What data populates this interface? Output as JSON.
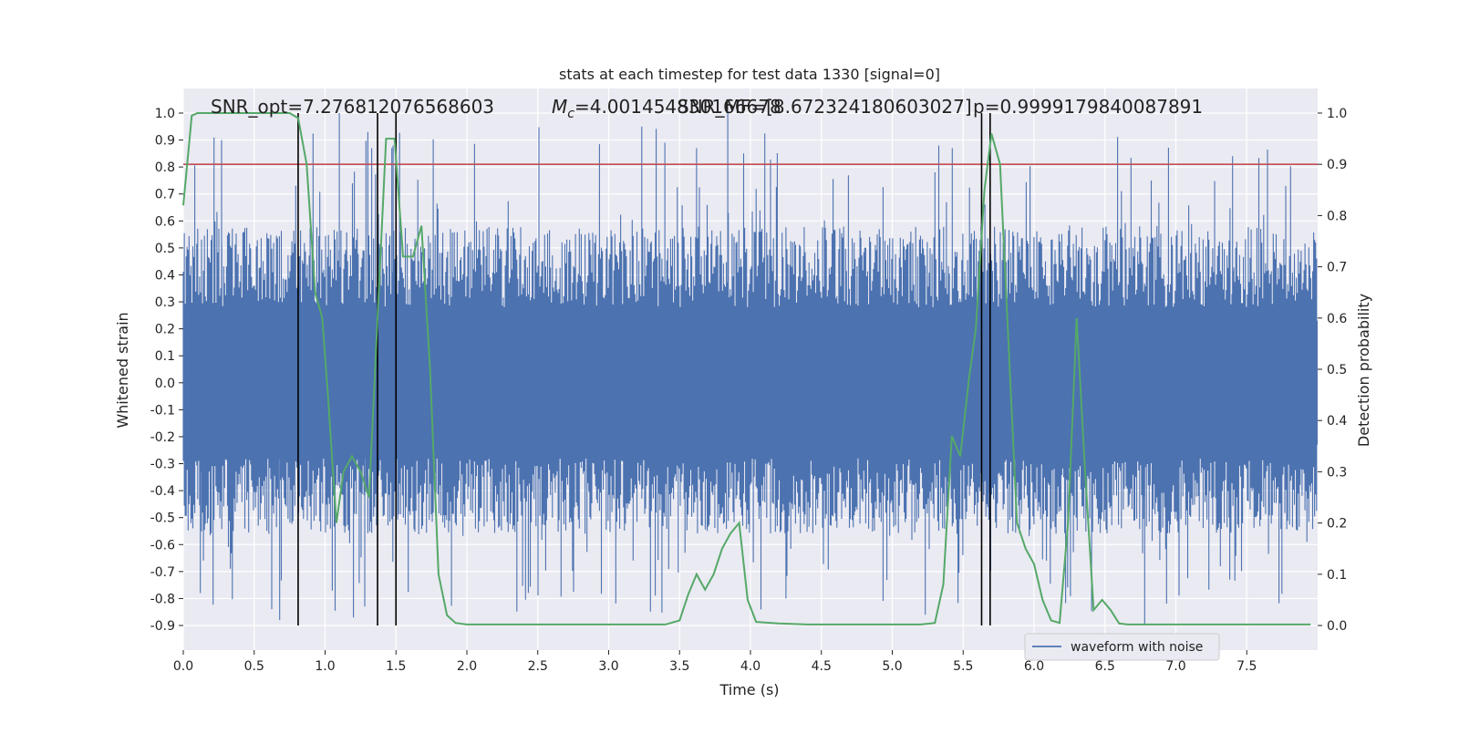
{
  "chart_data": {
    "type": "line",
    "title": "stats at each timestep for test data 1330 [signal=0]",
    "xlabel": "Time (s)",
    "ylabel_left": "Whitened strain",
    "ylabel_right": "Detection probability",
    "xlim": [
      0,
      8.0
    ],
    "ylim_left": [
      -1.0,
      1.05
    ],
    "ylim_right": [
      -0.05,
      1.05
    ],
    "x_ticks": [
      "0.0",
      "0.5",
      "1.0",
      "1.5",
      "2.0",
      "2.5",
      "3.0",
      "3.5",
      "4.0",
      "4.5",
      "5.0",
      "5.5",
      "6.0",
      "6.5",
      "7.0",
      "7.5"
    ],
    "y_left_ticks": [
      "1.0",
      "0.9",
      "0.8",
      "0.7",
      "0.6",
      "0.5",
      "0.4",
      "0.3",
      "0.2",
      "0.1",
      "0.0",
      "-0.1",
      "-0.2",
      "-0.3",
      "-0.4",
      "-0.5",
      "-0.6",
      "-0.7",
      "-0.8",
      "-0.9"
    ],
    "y_right_ticks": [
      "1.0",
      "0.9",
      "0.8",
      "0.7",
      "0.6",
      "0.5",
      "0.4",
      "0.3",
      "0.2",
      "0.1",
      "0.0"
    ],
    "grid": true,
    "legend": {
      "placement": "lower-right",
      "entries": [
        "waveform with noise"
      ]
    },
    "annotations": {
      "snr_opt": "SNR_opt=7.276812076568603",
      "mc": "=4.001454830166678",
      "mc_symbol": "M",
      "mc_subscript": "c",
      "snr_mf": "SNR_MF=[8.672324180603027]",
      "p": "p=0.9999179840087891"
    },
    "threshold": 0.9,
    "event_markers_s": [
      0.81,
      1.37,
      1.5,
      5.63,
      5.69
    ],
    "colors": {
      "waveform": "#4c72b0",
      "probability": "#55a868",
      "threshold": "#c44e52",
      "markers": "#000000",
      "plot_bg": "#eaeaf2",
      "grid": "#ffffff"
    },
    "series": [
      {
        "name": "waveform with noise",
        "envelope_range": [
          -0.9,
          1.0
        ]
      },
      {
        "axis": "right",
        "x": [
          0.0,
          0.06,
          0.1,
          0.2,
          0.3,
          0.4,
          0.5,
          0.6,
          0.7,
          0.75,
          0.81,
          0.87,
          0.93,
          0.98,
          1.02,
          1.08,
          1.13,
          1.19,
          1.25,
          1.31,
          1.37,
          1.43,
          1.49,
          1.55,
          1.62,
          1.68,
          1.74,
          1.8,
          1.86,
          1.92,
          2.0,
          2.2,
          2.4,
          2.6,
          2.8,
          3.0,
          3.2,
          3.4,
          3.5,
          3.56,
          3.62,
          3.68,
          3.74,
          3.8,
          3.86,
          3.92,
          3.98,
          4.04,
          4.2,
          4.4,
          4.6,
          4.8,
          5.0,
          5.2,
          5.3,
          5.36,
          5.42,
          5.48,
          5.54,
          5.59,
          5.65,
          5.7,
          5.76,
          5.82,
          5.88,
          5.94,
          6.0,
          6.06,
          6.12,
          6.18,
          6.24,
          6.3,
          6.36,
          6.42,
          6.48,
          6.54,
          6.6,
          6.66,
          6.72,
          6.8,
          7.0,
          7.5,
          7.95
        ],
        "y": [
          0.82,
          0.995,
          1.0,
          1.0,
          1.0,
          1.0,
          1.0,
          1.0,
          1.0,
          1.0,
          0.99,
          0.9,
          0.65,
          0.6,
          0.45,
          0.2,
          0.3,
          0.33,
          0.3,
          0.25,
          0.6,
          0.95,
          0.95,
          0.72,
          0.72,
          0.78,
          0.5,
          0.1,
          0.02,
          0.005,
          0.002,
          0.002,
          0.002,
          0.002,
          0.002,
          0.002,
          0.002,
          0.002,
          0.01,
          0.06,
          0.1,
          0.07,
          0.1,
          0.15,
          0.18,
          0.2,
          0.05,
          0.007,
          0.004,
          0.002,
          0.002,
          0.002,
          0.002,
          0.002,
          0.005,
          0.08,
          0.37,
          0.33,
          0.48,
          0.58,
          0.85,
          0.96,
          0.9,
          0.55,
          0.2,
          0.15,
          0.12,
          0.05,
          0.01,
          0.005,
          0.2,
          0.6,
          0.3,
          0.03,
          0.05,
          0.03,
          0.004,
          0.002,
          0.002,
          0.002,
          0.002,
          0.002,
          0.002
        ]
      }
    ]
  }
}
